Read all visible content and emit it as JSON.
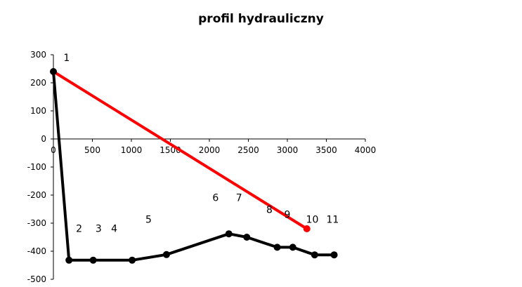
{
  "chart_data": {
    "type": "line",
    "title": "profil hydrauliczny",
    "xlabel": "",
    "ylabel": "",
    "xlim": [
      0,
      4000
    ],
    "ylim": [
      -500,
      300
    ],
    "x_ticks": [
      0,
      500,
      1000,
      1500,
      2000,
      2500,
      3000,
      3500,
      4000
    ],
    "y_ticks": [
      300,
      200,
      100,
      0,
      -100,
      -200,
      -300,
      -400,
      -500
    ],
    "grid": false,
    "legend": "none",
    "series": [
      {
        "color": "#ff0000",
        "x": [
          0,
          3250
        ],
        "y": [
          240,
          -320
        ]
      },
      {
        "color": "#000000",
        "x": [
          0,
          200,
          510,
          1010,
          1450,
          2250,
          2480,
          2870,
          3070,
          3350,
          3600
        ],
        "y": [
          240,
          -432,
          -432,
          -432,
          -412,
          -338,
          -350,
          -386,
          -386,
          -413,
          -413
        ]
      }
    ],
    "point_labels": [
      {
        "text": "1",
        "x": 170,
        "y": 277
      },
      {
        "text": "2",
        "x": 330,
        "y": -331
      },
      {
        "text": "3",
        "x": 580,
        "y": -331
      },
      {
        "text": "4",
        "x": 780,
        "y": -331
      },
      {
        "text": "5",
        "x": 1220,
        "y": -299
      },
      {
        "text": "6",
        "x": 2080,
        "y": -221
      },
      {
        "text": "7",
        "x": 2380,
        "y": -221
      },
      {
        "text": "8",
        "x": 2770,
        "y": -264
      },
      {
        "text": "9",
        "x": 3000,
        "y": -281
      },
      {
        "text": "10",
        "x": 3320,
        "y": -299
      },
      {
        "text": "11",
        "x": 3580,
        "y": -299
      }
    ]
  }
}
